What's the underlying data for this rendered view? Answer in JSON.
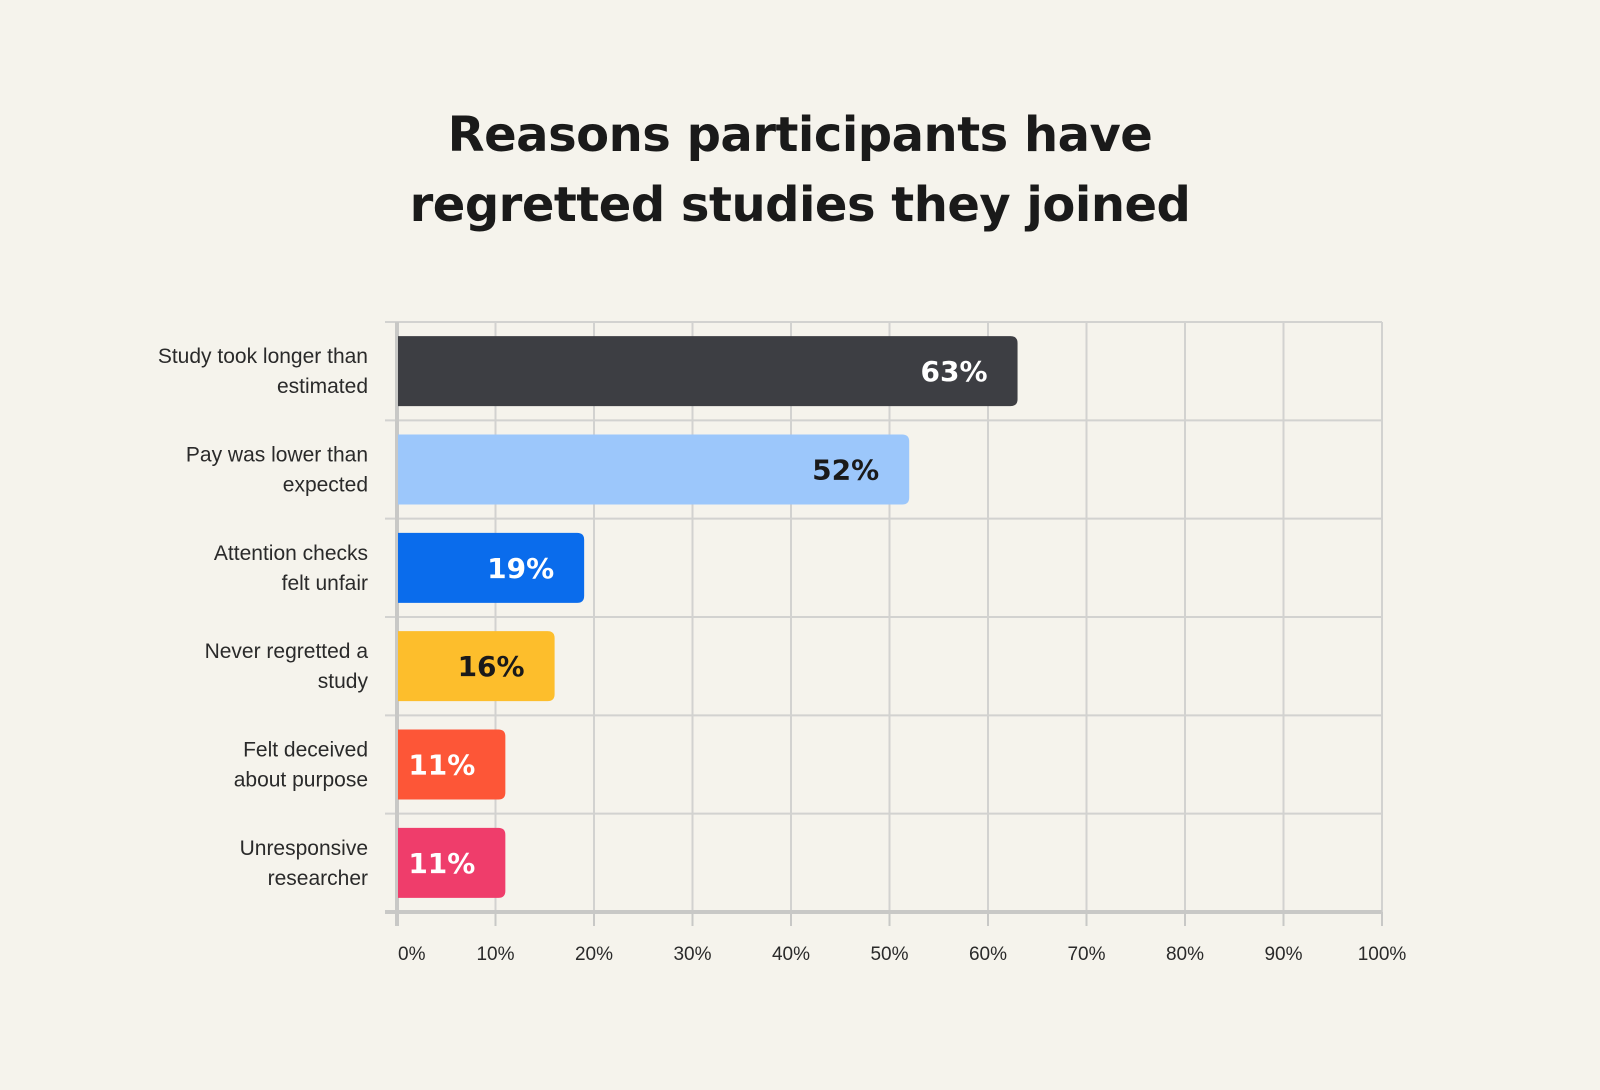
{
  "title_lines": [
    "Reasons participants have",
    "regretted studies they joined"
  ],
  "chart_data": {
    "type": "bar",
    "orientation": "horizontal",
    "title": "Reasons participants have regretted studies they joined",
    "categories": [
      [
        "Study took longer than",
        "estimated"
      ],
      [
        "Pay was lower than",
        "expected"
      ],
      [
        "Attention checks",
        "felt unfair"
      ],
      [
        "Never regretted a",
        "study"
      ],
      [
        "Felt deceived",
        "about purpose"
      ],
      [
        "Unresponsive",
        "researcher"
      ]
    ],
    "values": [
      63,
      52,
      19,
      16,
      11,
      11
    ],
    "value_labels": [
      "63%",
      "52%",
      "19%",
      "16%",
      "11%",
      "11%"
    ],
    "bar_colors": [
      "#3d3e43",
      "#9cc7fb",
      "#0a6cec",
      "#fdbe2c",
      "#fd5637",
      "#ef3d6b"
    ],
    "value_label_colors": [
      "#ffffff",
      "#1a1a1a",
      "#ffffff",
      "#1a1a1a",
      "#ffffff",
      "#ffffff"
    ],
    "xlim": [
      0,
      100
    ],
    "xticks": [
      0,
      10,
      20,
      30,
      40,
      50,
      60,
      70,
      80,
      90,
      100
    ],
    "xtick_labels": [
      "0%",
      "10%",
      "20%",
      "30%",
      "40%",
      "50%",
      "60%",
      "70%",
      "80%",
      "90%",
      "100%"
    ],
    "grid": true,
    "xlabel": "",
    "ylabel": ""
  }
}
